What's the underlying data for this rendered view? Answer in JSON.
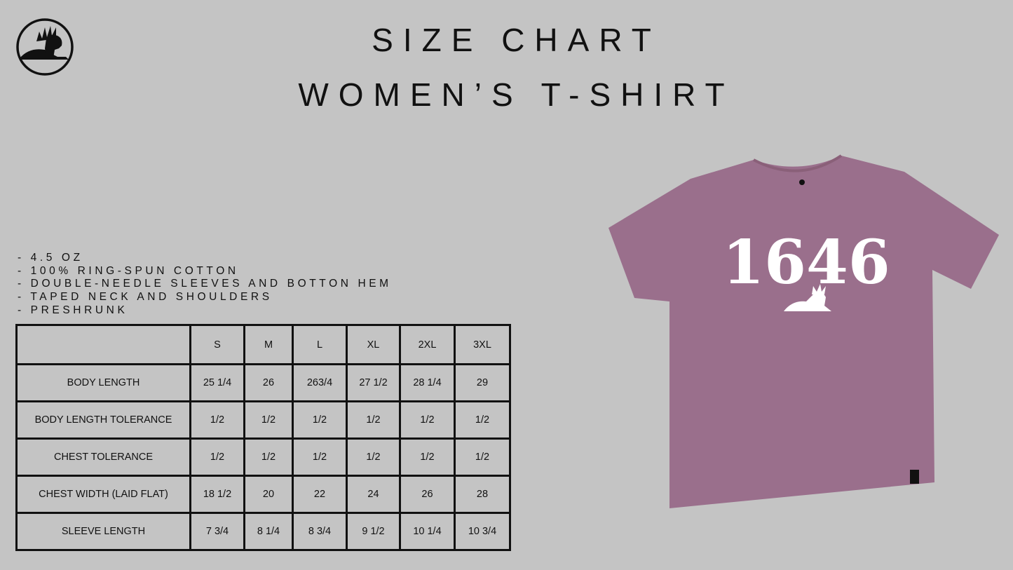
{
  "header": {
    "title_line1": "SIZE CHART",
    "title_line2": "WOMEN’S T-SHIRT"
  },
  "logo": {
    "icon": "lion-emblem-icon"
  },
  "features": [
    "- 4.5 OZ",
    "- 100% RING-SPUN COTTON",
    "- DOUBLE-NEEDLE SLEEVES AND BOTTON HEM",
    "- TAPED NECK AND SHOULDERS",
    "- PRESHRUNK"
  ],
  "size_table": {
    "header_blank": "",
    "sizes": [
      "S",
      "M",
      "L",
      "XL",
      "2XL",
      "3XL"
    ],
    "rows": [
      {
        "label": "BODY LENGTH",
        "values": [
          "25 1/4",
          "26",
          "263/4",
          "27 1/2",
          "28 1/4",
          "29"
        ]
      },
      {
        "label": "BODY LENGTH TOLERANCE",
        "values": [
          "1/2",
          "1/2",
          "1/2",
          "1/2",
          "1/2",
          "1/2"
        ]
      },
      {
        "label": "CHEST TOLERANCE",
        "values": [
          "1/2",
          "1/2",
          "1/2",
          "1/2",
          "1/2",
          "1/2"
        ]
      },
      {
        "label": "CHEST WIDTH (LAID FLAT)",
        "values": [
          "18 1/2",
          "20",
          "22",
          "24",
          "26",
          "28"
        ]
      },
      {
        "label": "SLEEVE LENGTH",
        "values": [
          "7 3/4",
          "8 1/4",
          "8 3/4",
          "9 1/2",
          "10 1/4",
          "10 3/4"
        ]
      }
    ]
  },
  "product_image": {
    "print_text": "1646",
    "shirt_color": "#9a6f8c",
    "print_color": "#ffffff"
  },
  "colors": {
    "background": "#c4c4c4",
    "text": "#111111"
  }
}
